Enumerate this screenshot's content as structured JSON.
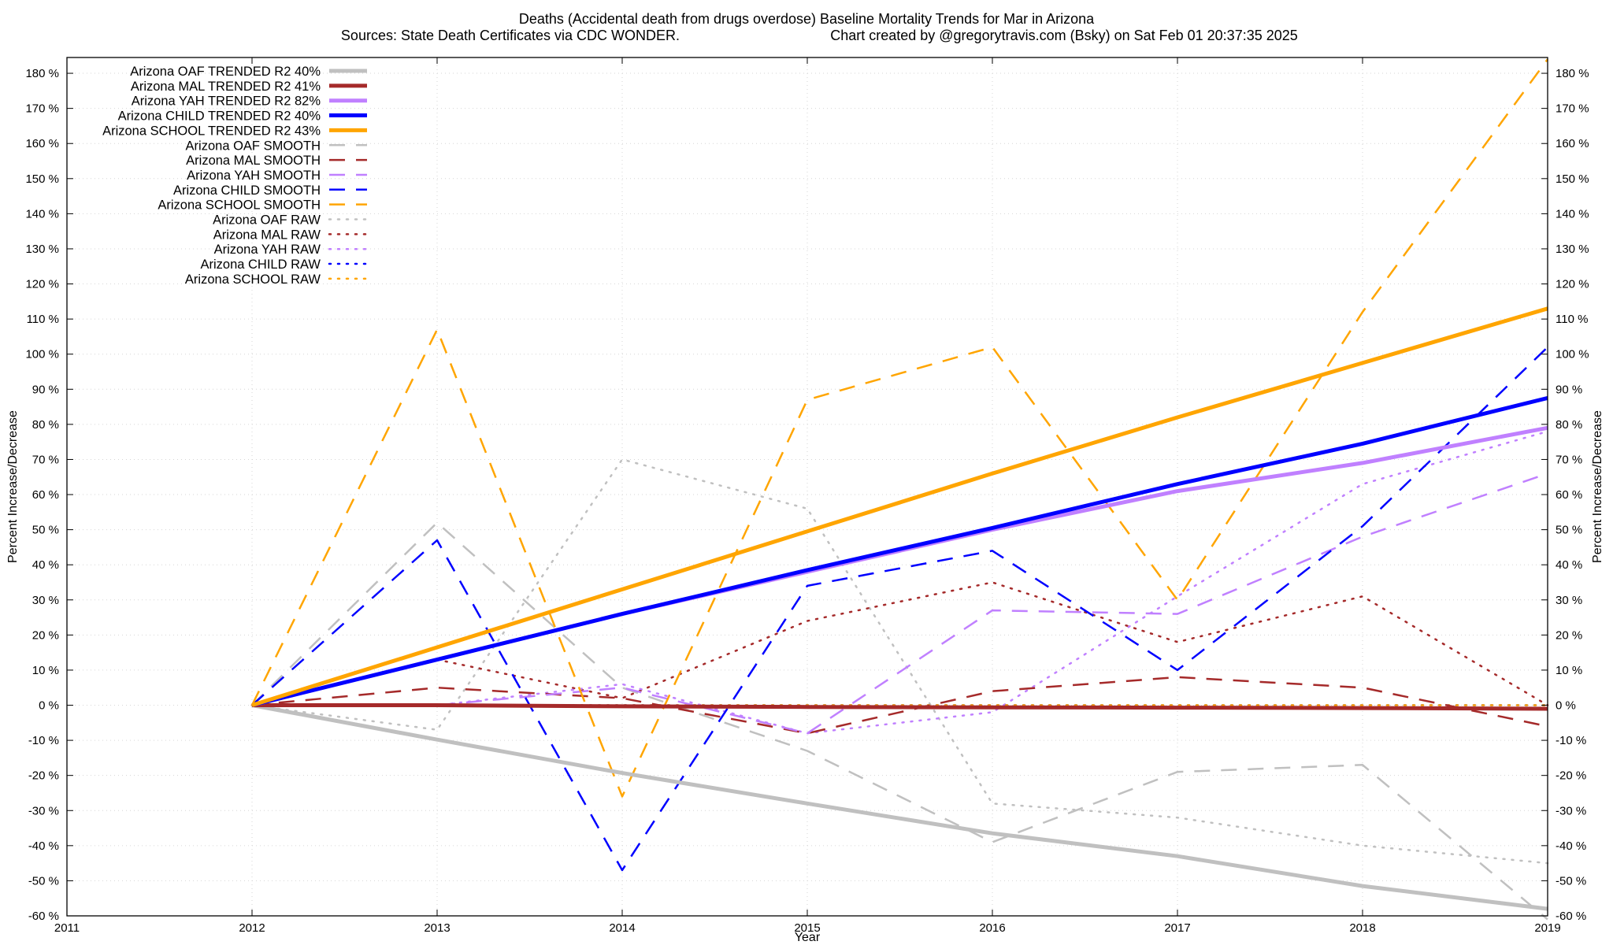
{
  "chart_data": {
    "type": "line",
    "title": "Deaths (Accidental death from drugs overdose)  Baseline Mortality Trends for Mar in Arizona",
    "subtitle_left": "Sources: State Death Certificates via CDC WONDER.",
    "subtitle_right": "Chart created by @gregorytravis.com (Bsky) on Sat Feb 01 20:37:35 2025",
    "xlabel": "Year",
    "ylabel": "Percent Increase/Decrease",
    "xlim": [
      2011,
      2019
    ],
    "ylim": [
      -60,
      185
    ],
    "x_ticks": [
      {
        "value": 2011,
        "label": "2011"
      },
      {
        "value": 2012,
        "label": "2012"
      },
      {
        "value": 2013,
        "label": "2013"
      },
      {
        "value": 2014,
        "label": "2014"
      },
      {
        "value": 2015,
        "label": "2015"
      },
      {
        "value": 2016,
        "label": "2016"
      },
      {
        "value": 2017,
        "label": "2017"
      },
      {
        "value": 2018,
        "label": "2018"
      },
      {
        "value": 2019,
        "label": "2019"
      }
    ],
    "y_ticks": [
      {
        "value": 180,
        "label": "180 %"
      },
      {
        "value": 170,
        "label": "170 %"
      },
      {
        "value": 160,
        "label": "160 %"
      },
      {
        "value": 150,
        "label": "150 %"
      },
      {
        "value": 140,
        "label": "140 %"
      },
      {
        "value": 130,
        "label": "130 %"
      },
      {
        "value": 120,
        "label": "120 %"
      },
      {
        "value": 110,
        "label": "110 %"
      },
      {
        "value": 100,
        "label": "100 %"
      },
      {
        "value": 90,
        "label": "90 %"
      },
      {
        "value": 80,
        "label": "80 %"
      },
      {
        "value": 70,
        "label": "70 %"
      },
      {
        "value": 60,
        "label": "60 %"
      },
      {
        "value": 50,
        "label": "50 %"
      },
      {
        "value": 40,
        "label": "40 %"
      },
      {
        "value": 30,
        "label": "30 %"
      },
      {
        "value": 20,
        "label": "20 %"
      },
      {
        "value": 10,
        "label": "10 %"
      },
      {
        "value": 0,
        "label": "0 %"
      },
      {
        "value": -10,
        "label": "-10 %"
      },
      {
        "value": -20,
        "label": "-20 %"
      },
      {
        "value": -30,
        "label": "-30 %"
      },
      {
        "value": -40,
        "label": "-40 %"
      },
      {
        "value": -50,
        "label": "-50 %"
      },
      {
        "value": -60,
        "label": "-60 %"
      }
    ],
    "grid": true,
    "legend_position": "top-left",
    "series": [
      {
        "name": "Arizona OAF TRENDED R2  40%",
        "color": "#c0c0c0",
        "style": "solid",
        "width": 5,
        "x": [
          2012,
          2013,
          2014,
          2015,
          2016,
          2017,
          2018,
          2019
        ],
        "y": [
          0,
          -9.8,
          -19.3,
          -28,
          -36.5,
          -43,
          -51.5,
          -58
        ]
      },
      {
        "name": "Arizona MAL TRENDED R2  41%",
        "color": "#a52a2a",
        "style": "solid",
        "width": 5,
        "x": [
          2012,
          2013,
          2014,
          2015,
          2016,
          2017,
          2018,
          2019
        ],
        "y": [
          0,
          0,
          -0.3,
          -0.5,
          -0.6,
          -0.7,
          -0.8,
          -1
        ]
      },
      {
        "name": "Arizona YAH TRENDED R2  82%",
        "color": "#c080ff",
        "style": "solid",
        "width": 5,
        "x": [
          2012,
          2013,
          2014,
          2015,
          2016,
          2017,
          2018,
          2019
        ],
        "y": [
          0,
          13,
          26,
          38,
          50,
          61,
          69,
          79
        ]
      },
      {
        "name": "Arizona CHILD TRENDED R2  40%",
        "color": "#0000ff",
        "style": "solid",
        "width": 5,
        "x": [
          2012,
          2013,
          2014,
          2015,
          2016,
          2017,
          2018,
          2019
        ],
        "y": [
          0,
          13,
          26,
          38.5,
          50.5,
          63,
          74.5,
          87.5
        ]
      },
      {
        "name": "Arizona SCHOOL TRENDED R2  43%",
        "color": "#ffa500",
        "style": "solid",
        "width": 5,
        "x": [
          2012,
          2013,
          2014,
          2015,
          2016,
          2017,
          2018,
          2019
        ],
        "y": [
          0,
          16.5,
          33,
          49.5,
          66,
          82,
          97.5,
          113
        ]
      },
      {
        "name": "Arizona OAF SMOOTH",
        "color": "#c0c0c0",
        "style": "dashed",
        "width": 2.5,
        "x": [
          2012,
          2013,
          2014,
          2015,
          2016,
          2017,
          2018,
          2019
        ],
        "y": [
          0,
          52,
          5,
          -13,
          -39,
          -19,
          -17,
          -61
        ]
      },
      {
        "name": "Arizona MAL SMOOTH",
        "color": "#a52a2a",
        "style": "dashed",
        "width": 2.5,
        "x": [
          2012,
          2013,
          2014,
          2015,
          2016,
          2017,
          2018,
          2019
        ],
        "y": [
          0,
          5,
          2,
          -8,
          4,
          8,
          5,
          -6
        ]
      },
      {
        "name": "Arizona YAH SMOOTH",
        "color": "#c080ff",
        "style": "dashed",
        "width": 2.5,
        "x": [
          2012,
          2013,
          2014,
          2015,
          2016,
          2017,
          2018,
          2019
        ],
        "y": [
          0,
          0,
          5,
          -8,
          27,
          26,
          48,
          66
        ]
      },
      {
        "name": "Arizona CHILD SMOOTH",
        "color": "#0000ff",
        "style": "dashed",
        "width": 2.5,
        "x": [
          2012,
          2013,
          2014,
          2015,
          2016,
          2017,
          2018,
          2019
        ],
        "y": [
          0,
          47,
          -47,
          34,
          44,
          10,
          51,
          102
        ]
      },
      {
        "name": "Arizona SCHOOL SMOOTH",
        "color": "#ffa500",
        "style": "dashed",
        "width": 2.5,
        "x": [
          2012,
          2013,
          2014,
          2015,
          2016,
          2017,
          2018,
          2019
        ],
        "y": [
          0,
          107,
          -26,
          87,
          102,
          30,
          112,
          184
        ]
      },
      {
        "name": "Arizona OAF RAW",
        "color": "#c0c0c0",
        "style": "dotted",
        "width": 2.5,
        "x": [
          2012,
          2013,
          2014,
          2015,
          2016,
          2017,
          2018,
          2019
        ],
        "y": [
          0,
          -7,
          70,
          56,
          -28,
          -32,
          -40,
          -45
        ]
      },
      {
        "name": "Arizona MAL RAW",
        "color": "#a52a2a",
        "style": "dotted",
        "width": 2.5,
        "x": [
          2012,
          2013,
          2014,
          2015,
          2016,
          2017,
          2018,
          2019
        ],
        "y": [
          0,
          13,
          2,
          24,
          35,
          18,
          31,
          0
        ]
      },
      {
        "name": "Arizona YAH RAW",
        "color": "#c080ff",
        "style": "dotted",
        "width": 2.5,
        "x": [
          2012,
          2013,
          2014,
          2015,
          2016,
          2017,
          2018,
          2019
        ],
        "y": [
          0,
          0,
          6,
          -8,
          -2,
          31,
          63,
          78
        ]
      },
      {
        "name": "Arizona CHILD RAW",
        "color": "#0000ff",
        "style": "dotted",
        "width": 2.5,
        "x": [
          2012,
          2013,
          2014,
          2015,
          2016,
          2017,
          2018,
          2019
        ],
        "y": [
          0,
          0,
          0,
          0,
          0,
          0,
          0,
          0
        ]
      },
      {
        "name": "Arizona SCHOOL RAW",
        "color": "#ffa500",
        "style": "dotted",
        "width": 2.5,
        "x": [
          2012,
          2013,
          2014,
          2015,
          2016,
          2017,
          2018,
          2019
        ],
        "y": [
          0,
          0,
          0,
          0,
          0,
          0,
          0,
          0
        ]
      }
    ]
  }
}
